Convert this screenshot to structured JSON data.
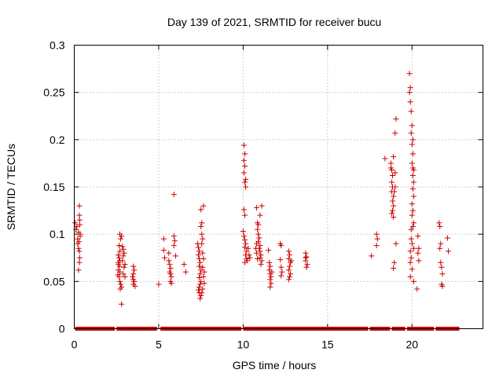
{
  "chart_data": {
    "type": "scatter",
    "title": "Day 139 of 2021, SRMTID for receiver bucu",
    "xlabel": "GPS time / hours",
    "ylabel": "SRMTID / TECUs",
    "xlim": [
      0,
      24.2
    ],
    "ylim": [
      0,
      0.3
    ],
    "grid": true,
    "marker": "+",
    "x_ticks": [
      0,
      5,
      10,
      15,
      20
    ],
    "x_tick_labels": [
      "0",
      "5",
      "10",
      "15",
      "20"
    ],
    "y_ticks": [
      0,
      0.05,
      0.1,
      0.15,
      0.2,
      0.25,
      0.3
    ],
    "y_tick_labels": [
      "0",
      "0.05",
      "0.1",
      "0.15",
      "0.2",
      "0.25",
      "0.3"
    ],
    "colors": {
      "series": "#cc0000",
      "grid": "#a0a0a0",
      "axes": "#000000"
    },
    "series": [
      {
        "name": "SRMTID",
        "points": [
          [
            0.05,
            0.112
          ],
          [
            0.1,
            0.105
          ],
          [
            0.15,
            0.108
          ],
          [
            0.2,
            0.095
          ],
          [
            0.25,
            0.102
          ],
          [
            0.2,
            0.09
          ],
          [
            0.25,
            0.085
          ],
          [
            0.3,
            0.13
          ],
          [
            0.3,
            0.12
          ],
          [
            0.32,
            0.115
          ],
          [
            0.33,
            0.11
          ],
          [
            0.35,
            0.1
          ],
          [
            0.28,
            0.092
          ],
          [
            0.3,
            0.082
          ],
          [
            0.32,
            0.075
          ],
          [
            0.3,
            0.07
          ],
          [
            0.25,
            0.062
          ],
          [
            0.35,
            0.098
          ],
          [
            2.7,
            0.1
          ],
          [
            2.75,
            0.095
          ],
          [
            2.65,
            0.088
          ],
          [
            2.7,
            0.082
          ],
          [
            2.6,
            0.078
          ],
          [
            2.65,
            0.075
          ],
          [
            2.7,
            0.072
          ],
          [
            2.6,
            0.07
          ],
          [
            2.62,
            0.068
          ],
          [
            2.68,
            0.066
          ],
          [
            2.6,
            0.062
          ],
          [
            2.7,
            0.06
          ],
          [
            2.58,
            0.057
          ],
          [
            2.65,
            0.055
          ],
          [
            2.7,
            0.05
          ],
          [
            2.75,
            0.047
          ],
          [
            2.8,
            0.044
          ],
          [
            2.72,
            0.042
          ],
          [
            2.85,
            0.087
          ],
          [
            2.9,
            0.084
          ],
          [
            2.95,
            0.08
          ],
          [
            2.9,
            0.077
          ],
          [
            2.85,
            0.072
          ],
          [
            3.0,
            0.068
          ],
          [
            2.95,
            0.065
          ],
          [
            2.9,
            0.058
          ],
          [
            3.0,
            0.055
          ],
          [
            2.8,
            0.098
          ],
          [
            2.8,
            0.026
          ],
          [
            3.5,
            0.066
          ],
          [
            3.55,
            0.062
          ],
          [
            3.5,
            0.058
          ],
          [
            3.45,
            0.055
          ],
          [
            3.5,
            0.052
          ],
          [
            3.55,
            0.05
          ],
          [
            3.5,
            0.047
          ],
          [
            3.6,
            0.045
          ],
          [
            5.0,
            0.047
          ],
          [
            5.3,
            0.095
          ],
          [
            5.3,
            0.083
          ],
          [
            5.35,
            0.075
          ],
          [
            5.6,
            0.072
          ],
          [
            5.65,
            0.068
          ],
          [
            5.7,
            0.064
          ],
          [
            5.65,
            0.06
          ],
          [
            5.7,
            0.058
          ],
          [
            5.75,
            0.055
          ],
          [
            5.7,
            0.05
          ],
          [
            5.75,
            0.048
          ],
          [
            5.6,
            0.08
          ],
          [
            5.9,
            0.098
          ],
          [
            5.95,
            0.093
          ],
          [
            5.9,
            0.088
          ],
          [
            6.0,
            0.077
          ],
          [
            5.9,
            0.142
          ],
          [
            6.5,
            0.068
          ],
          [
            6.6,
            0.06
          ],
          [
            7.3,
            0.09
          ],
          [
            7.35,
            0.086
          ],
          [
            7.4,
            0.082
          ],
          [
            7.35,
            0.078
          ],
          [
            7.4,
            0.074
          ],
          [
            7.45,
            0.07
          ],
          [
            7.4,
            0.066
          ],
          [
            7.5,
            0.062
          ],
          [
            7.45,
            0.058
          ],
          [
            7.4,
            0.054
          ],
          [
            7.5,
            0.05
          ],
          [
            7.45,
            0.047
          ],
          [
            7.4,
            0.044
          ],
          [
            7.35,
            0.041
          ],
          [
            7.4,
            0.038
          ],
          [
            7.5,
            0.035
          ],
          [
            7.45,
            0.032
          ],
          [
            7.5,
            0.126
          ],
          [
            7.55,
            0.112
          ],
          [
            7.5,
            0.108
          ],
          [
            7.55,
            0.1
          ],
          [
            7.6,
            0.095
          ],
          [
            7.55,
            0.09
          ],
          [
            7.65,
            0.13
          ],
          [
            7.6,
            0.08
          ],
          [
            7.65,
            0.074
          ],
          [
            7.6,
            0.065
          ],
          [
            7.7,
            0.06
          ],
          [
            7.65,
            0.055
          ],
          [
            7.7,
            0.048
          ],
          [
            7.6,
            0.042
          ],
          [
            7.55,
            0.038
          ],
          [
            10.05,
            0.194
          ],
          [
            10.1,
            0.185
          ],
          [
            10.05,
            0.178
          ],
          [
            10.1,
            0.172
          ],
          [
            10.05,
            0.165
          ],
          [
            10.15,
            0.158
          ],
          [
            10.1,
            0.155
          ],
          [
            10.15,
            0.15
          ],
          [
            10.05,
            0.126
          ],
          [
            10.1,
            0.12
          ],
          [
            10.0,
            0.103
          ],
          [
            10.05,
            0.098
          ],
          [
            10.1,
            0.094
          ],
          [
            10.15,
            0.09
          ],
          [
            10.1,
            0.086
          ],
          [
            10.2,
            0.082
          ],
          [
            10.15,
            0.078
          ],
          [
            10.2,
            0.074
          ],
          [
            10.1,
            0.07
          ],
          [
            10.25,
            0.072
          ],
          [
            10.3,
            0.085
          ],
          [
            10.35,
            0.078
          ],
          [
            10.4,
            0.075
          ],
          [
            10.8,
            0.128
          ],
          [
            10.85,
            0.112
          ],
          [
            10.9,
            0.11
          ],
          [
            10.85,
            0.105
          ],
          [
            10.9,
            0.1
          ],
          [
            10.95,
            0.096
          ],
          [
            10.9,
            0.092
          ],
          [
            11.0,
            0.088
          ],
          [
            10.95,
            0.085
          ],
          [
            11.0,
            0.082
          ],
          [
            11.05,
            0.078
          ],
          [
            11.0,
            0.075
          ],
          [
            11.1,
            0.072
          ],
          [
            11.05,
            0.068
          ],
          [
            11.1,
            0.13
          ],
          [
            11.0,
            0.12
          ],
          [
            10.8,
            0.09
          ],
          [
            10.75,
            0.085
          ],
          [
            10.8,
            0.08
          ],
          [
            10.85,
            0.074
          ],
          [
            11.5,
            0.083
          ],
          [
            11.55,
            0.07
          ],
          [
            11.6,
            0.066
          ],
          [
            11.55,
            0.062
          ],
          [
            11.6,
            0.058
          ],
          [
            11.65,
            0.055
          ],
          [
            11.6,
            0.052
          ],
          [
            11.65,
            0.048
          ],
          [
            11.6,
            0.044
          ],
          [
            11.7,
            0.06
          ],
          [
            12.2,
            0.09
          ],
          [
            12.25,
            0.088
          ],
          [
            12.2,
            0.073
          ],
          [
            12.25,
            0.065
          ],
          [
            12.3,
            0.06
          ],
          [
            12.25,
            0.056
          ],
          [
            12.7,
            0.082
          ],
          [
            12.75,
            0.078
          ],
          [
            12.7,
            0.074
          ],
          [
            12.8,
            0.07
          ],
          [
            12.75,
            0.066
          ],
          [
            12.7,
            0.062
          ],
          [
            12.8,
            0.058
          ],
          [
            12.75,
            0.055
          ],
          [
            12.7,
            0.052
          ],
          [
            12.85,
            0.072
          ],
          [
            13.7,
            0.08
          ],
          [
            13.75,
            0.076
          ],
          [
            13.7,
            0.072
          ],
          [
            13.8,
            0.068
          ],
          [
            13.75,
            0.065
          ],
          [
            13.7,
            0.075
          ],
          [
            17.6,
            0.077
          ],
          [
            17.9,
            0.1
          ],
          [
            17.95,
            0.095
          ],
          [
            17.9,
            0.088
          ],
          [
            18.4,
            0.18
          ],
          [
            18.75,
            0.175
          ],
          [
            18.8,
            0.168
          ],
          [
            18.85,
            0.162
          ],
          [
            18.8,
            0.155
          ],
          [
            18.85,
            0.15
          ],
          [
            18.8,
            0.145
          ],
          [
            18.9,
            0.14
          ],
          [
            18.85,
            0.135
          ],
          [
            18.9,
            0.13
          ],
          [
            18.85,
            0.125
          ],
          [
            18.8,
            0.122
          ],
          [
            18.9,
            0.118
          ],
          [
            18.75,
            0.17
          ],
          [
            18.9,
            0.182
          ],
          [
            19.0,
            0.165
          ],
          [
            19.05,
            0.222
          ],
          [
            19.0,
            0.207
          ],
          [
            19.05,
            0.09
          ],
          [
            18.95,
            0.07
          ],
          [
            18.9,
            0.064
          ],
          [
            19.0,
            0.15
          ],
          [
            18.95,
            0.145
          ],
          [
            19.85,
            0.27
          ],
          [
            19.9,
            0.255
          ],
          [
            19.85,
            0.25
          ],
          [
            19.9,
            0.24
          ],
          [
            19.95,
            0.23
          ],
          [
            20.0,
            0.215
          ],
          [
            19.95,
            0.207
          ],
          [
            20.05,
            0.2
          ],
          [
            20.0,
            0.195
          ],
          [
            20.05,
            0.185
          ],
          [
            20.0,
            0.175
          ],
          [
            20.1,
            0.168
          ],
          [
            20.05,
            0.162
          ],
          [
            20.1,
            0.155
          ],
          [
            20.05,
            0.148
          ],
          [
            20.1,
            0.14
          ],
          [
            20.0,
            0.132
          ],
          [
            20.05,
            0.125
          ],
          [
            20.0,
            0.12
          ],
          [
            20.1,
            0.112
          ],
          [
            20.05,
            0.108
          ],
          [
            19.95,
            0.095
          ],
          [
            20.0,
            0.09
          ],
          [
            19.9,
            0.082
          ],
          [
            19.95,
            0.075
          ],
          [
            19.9,
            0.07
          ],
          [
            20.0,
            0.063
          ],
          [
            19.9,
            0.055
          ],
          [
            20.1,
            0.05
          ],
          [
            20.1,
            0.085
          ],
          [
            19.95,
            0.105
          ],
          [
            20.05,
            0.17
          ],
          [
            20.35,
            0.098
          ],
          [
            20.4,
            0.085
          ],
          [
            20.35,
            0.08
          ],
          [
            20.4,
            0.072
          ],
          [
            20.3,
            0.042
          ],
          [
            21.6,
            0.112
          ],
          [
            21.65,
            0.108
          ],
          [
            21.7,
            0.09
          ],
          [
            21.65,
            0.085
          ],
          [
            21.7,
            0.07
          ],
          [
            21.75,
            0.065
          ],
          [
            21.8,
            0.058
          ],
          [
            21.75,
            0.047
          ],
          [
            21.8,
            0.045
          ],
          [
            22.1,
            0.096
          ],
          [
            22.15,
            0.082
          ]
        ],
        "zero_segments_hours": [
          [
            0.05,
            2.4
          ],
          [
            2.5,
            4.9
          ],
          [
            5.1,
            9.9
          ],
          [
            10.0,
            17.4
          ],
          [
            17.5,
            18.7
          ],
          [
            18.8,
            19.6
          ],
          [
            19.7,
            21.3
          ],
          [
            21.4,
            22.8
          ]
        ],
        "zero_value": 0
      }
    ]
  }
}
